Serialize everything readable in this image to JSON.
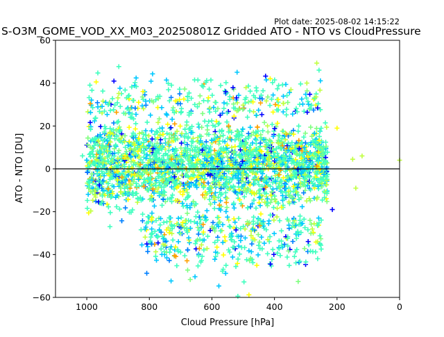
{
  "header": {
    "title": "S-O3M_GOME_VOD_XX_M03_20250801Z Gridded ATO - NTO vs CloudPressure",
    "plot_date": "Plot date: 2025-08-02 14:15:22"
  },
  "chart_data": {
    "type": "scatter",
    "title": "S-O3M_GOME_VOD_XX_M03_20250801Z Gridded ATO - NTO vs CloudPressure",
    "xlabel": "Cloud Pressure [hPa]",
    "ylabel": "ATO - NTO [DU]",
    "xlim": [
      1100,
      0
    ],
    "ylim": [
      -60,
      60
    ],
    "x_ticks": [
      1000,
      800,
      600,
      400,
      200,
      0
    ],
    "x_tick_labels": [
      "1000",
      "800",
      "600",
      "400",
      "200",
      "0"
    ],
    "y_ticks": [
      -60,
      -40,
      -20,
      0,
      20,
      40,
      60
    ],
    "y_tick_labels": [
      "−60",
      "−40",
      "−20",
      "0",
      "20",
      "40",
      "60"
    ],
    "x_inverted": true,
    "grid": false,
    "legend": "none",
    "marker": "+",
    "reference_line_y": 0,
    "colors": {
      "reference_line": "#000000",
      "marker_palette": [
        "#0000ff",
        "#0080ff",
        "#00c8ff",
        "#40ffbf",
        "#80ff80",
        "#c0ff40",
        "#ffff00",
        "#ffa000"
      ],
      "dominant": "#40ffbf"
    },
    "approx_point_density": {
      "core_x_range": [
        1000,
        230
      ],
      "core_y_range": [
        -25,
        30
      ],
      "outlier_y_range": [
        -60,
        50
      ],
      "isolated_points_near_x": [
        150,
        120,
        0
      ]
    }
  }
}
